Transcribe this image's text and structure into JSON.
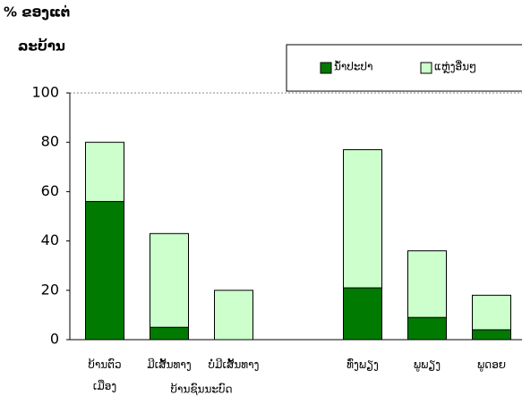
{
  "chart_data": {
    "type": "stacked_bar",
    "title": "% ຂອງແຕ່",
    "subtitle": "ລະບ້ານ",
    "categories": [
      "ບ້ານຕົວ\nເມືອງ",
      "ມີເສັ້ນທາງ",
      "ບໍ່ມີເສັ້ນທາງ",
      "ທົ່ງພຽງ",
      "ພູພຽງ",
      "ພູດອຍ"
    ],
    "group_label": "ບ້ານຊົນນະບົດ",
    "series": [
      {
        "name": "ນ້ຳປະປາ",
        "color": "#007a00",
        "values": [
          56,
          5,
          0,
          21,
          9,
          4
        ]
      },
      {
        "name": "ແຫຼ່ງອື່ນໆ",
        "color": "#ccffcc",
        "values": [
          24,
          38,
          20,
          56,
          27,
          14
        ]
      }
    ],
    "ylim": [
      0,
      100
    ],
    "yticks": [
      0,
      20,
      40,
      60,
      80,
      100
    ],
    "grid": false
  }
}
